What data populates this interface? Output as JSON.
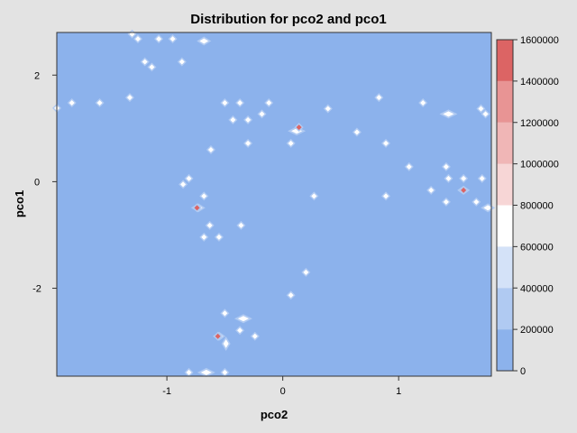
{
  "chart_data": {
    "type": "heatmap",
    "title": "Distribution for pco2 and pco1",
    "xlabel": "pco2",
    "ylabel": "pco1",
    "xlim": [
      -1.95,
      1.8
    ],
    "ylim": [
      -3.65,
      2.8
    ],
    "x_ticks": [
      -1,
      0,
      1
    ],
    "y_ticks": [
      -2,
      0,
      2
    ],
    "x_tick_labels": [
      "-1",
      "0",
      "1"
    ],
    "y_tick_labels": [
      "-2",
      "0",
      "2"
    ],
    "background_color": "#8cb2ec",
    "colorbar": {
      "levels": [
        0,
        200000,
        400000,
        600000,
        800000,
        1000000,
        1200000,
        1400000,
        1600000
      ],
      "tick_labels": [
        "0",
        "200000",
        "400000",
        "600000",
        "800000",
        "1000000",
        "1200000",
        "1400000",
        "1600000"
      ],
      "colors": [
        "#8cb2ec",
        "#b0caf2",
        "#d4e2f8",
        "#ffffff",
        "#f7d6d6",
        "#f0b6b6",
        "#e89494",
        "#dc6464"
      ]
    },
    "points": [
      {
        "x": -1.3,
        "y": 2.77,
        "level": 3
      },
      {
        "x": -1.25,
        "y": 2.68,
        "level": 3
      },
      {
        "x": -1.07,
        "y": 2.68,
        "level": 3
      },
      {
        "x": -0.95,
        "y": 2.68,
        "level": 3
      },
      {
        "x": -0.68,
        "y": 2.64,
        "level": 3,
        "sx": 1.6
      },
      {
        "x": -1.19,
        "y": 2.25,
        "level": 3
      },
      {
        "x": -1.13,
        "y": 2.15,
        "level": 3
      },
      {
        "x": -0.87,
        "y": 2.25,
        "level": 3
      },
      {
        "x": -1.32,
        "y": 1.58,
        "level": 3
      },
      {
        "x": -1.82,
        "y": 1.48,
        "level": 3
      },
      {
        "x": -1.58,
        "y": 1.48,
        "level": 3
      },
      {
        "x": -1.95,
        "y": 1.38,
        "level": 3
      },
      {
        "x": -0.5,
        "y": 1.48,
        "level": 3
      },
      {
        "x": -0.37,
        "y": 1.48,
        "level": 3
      },
      {
        "x": -0.12,
        "y": 1.48,
        "level": 3
      },
      {
        "x": -0.43,
        "y": 1.16,
        "level": 3
      },
      {
        "x": -0.3,
        "y": 1.16,
        "level": 3
      },
      {
        "x": -0.18,
        "y": 1.27,
        "level": 3
      },
      {
        "x": 0.12,
        "y": 0.95,
        "level": 3,
        "sx": 2.0
      },
      {
        "x": 0.14,
        "y": 1.02,
        "level": 7
      },
      {
        "x": -0.3,
        "y": 0.72,
        "level": 3
      },
      {
        "x": -0.62,
        "y": 0.6,
        "level": 3
      },
      {
        "x": 0.07,
        "y": 0.72,
        "level": 3
      },
      {
        "x": 0.39,
        "y": 1.37,
        "level": 3
      },
      {
        "x": 0.83,
        "y": 1.58,
        "level": 3
      },
      {
        "x": 0.64,
        "y": 0.93,
        "level": 3
      },
      {
        "x": 0.89,
        "y": 0.72,
        "level": 3
      },
      {
        "x": 1.21,
        "y": 1.48,
        "level": 3
      },
      {
        "x": 1.43,
        "y": 1.27,
        "level": 3,
        "sx": 2.0
      },
      {
        "x": 1.71,
        "y": 1.37,
        "level": 3
      },
      {
        "x": 1.75,
        "y": 1.27,
        "level": 3
      },
      {
        "x": 1.09,
        "y": 0.28,
        "level": 3
      },
      {
        "x": 1.41,
        "y": 0.28,
        "level": 3
      },
      {
        "x": 1.43,
        "y": 0.06,
        "level": 3
      },
      {
        "x": 1.56,
        "y": 0.06,
        "level": 3
      },
      {
        "x": 1.72,
        "y": 0.06,
        "level": 3
      },
      {
        "x": 1.28,
        "y": -0.16,
        "level": 3
      },
      {
        "x": 1.56,
        "y": -0.16,
        "level": 3,
        "sx": 1.4
      },
      {
        "x": 1.56,
        "y": -0.16,
        "level": 7
      },
      {
        "x": 1.67,
        "y": -0.38,
        "level": 3
      },
      {
        "x": 1.41,
        "y": -0.38,
        "level": 3
      },
      {
        "x": 1.77,
        "y": -0.49,
        "level": 3,
        "sx": 1.6
      },
      {
        "x": 0.89,
        "y": -0.27,
        "level": 3
      },
      {
        "x": 0.27,
        "y": -0.27,
        "level": 3
      },
      {
        "x": -0.81,
        "y": 0.06,
        "level": 3
      },
      {
        "x": -0.86,
        "y": -0.05,
        "level": 3
      },
      {
        "x": -0.68,
        "y": -0.27,
        "level": 3
      },
      {
        "x": -0.73,
        "y": -0.49,
        "level": 3,
        "sx": 1.6
      },
      {
        "x": -0.74,
        "y": -0.49,
        "level": 7
      },
      {
        "x": -0.63,
        "y": -0.82,
        "level": 3
      },
      {
        "x": -0.36,
        "y": -0.82,
        "level": 3
      },
      {
        "x": -0.68,
        "y": -1.04,
        "level": 3
      },
      {
        "x": -0.55,
        "y": -1.04,
        "level": 3
      },
      {
        "x": 0.2,
        "y": -1.7,
        "level": 3
      },
      {
        "x": 0.07,
        "y": -2.13,
        "level": 3
      },
      {
        "x": -0.5,
        "y": -2.47,
        "level": 3
      },
      {
        "x": -0.34,
        "y": -2.57,
        "level": 3,
        "sx": 2.0
      },
      {
        "x": -0.37,
        "y": -2.79,
        "level": 3
      },
      {
        "x": -0.24,
        "y": -2.9,
        "level": 3
      },
      {
        "x": -0.55,
        "y": -2.9,
        "level": 3,
        "sx": 1.4
      },
      {
        "x": -0.56,
        "y": -2.9,
        "level": 7
      },
      {
        "x": -0.49,
        "y": -3.04,
        "level": 3,
        "sy": 1.6
      },
      {
        "x": -0.81,
        "y": -3.58,
        "level": 3
      },
      {
        "x": -0.66,
        "y": -3.58,
        "level": 3,
        "sx": 2.0
      },
      {
        "x": -0.5,
        "y": -3.58,
        "level": 3
      }
    ]
  }
}
